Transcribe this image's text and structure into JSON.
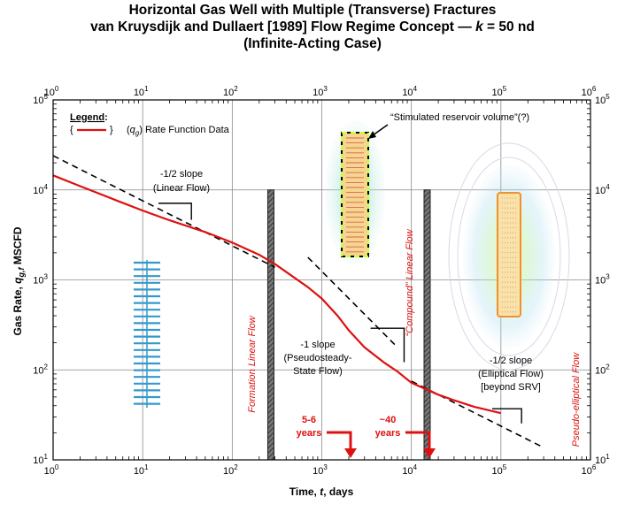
{
  "titles": {
    "line1": "Horizontal Gas Well with Multiple (Transverse) Fractures",
    "line2_prefix": "van Kruysdijk and Dullaert [1989] Flow Regime Concept — ",
    "line2_k": "k",
    "line2_suffix": " = 50 nd",
    "line3": "(Infinite-Acting Case)"
  },
  "chart_data": {
    "type": "line",
    "x_scale": "log",
    "y_scale": "log",
    "xlim": [
      1,
      1000000
    ],
    "ylim": [
      10,
      100000
    ],
    "grid": true,
    "xlabel": {
      "pre": "Time, ",
      "var": "t",
      "post": ", days"
    },
    "ylabel": {
      "pre": "Gas Rate, ",
      "var": "q",
      "sub": "g,f",
      "post": "  MSCFD"
    },
    "x_ticks": [
      {
        "base": "10",
        "exp": "0"
      },
      {
        "base": "10",
        "exp": "1"
      },
      {
        "base": "10",
        "exp": "2"
      },
      {
        "base": "10",
        "exp": "3"
      },
      {
        "base": "10",
        "exp": "4"
      },
      {
        "base": "10",
        "exp": "5"
      },
      {
        "base": "10",
        "exp": "6"
      }
    ],
    "y_ticks": [
      {
        "base": "10",
        "exp": "1"
      },
      {
        "base": "10",
        "exp": "2"
      },
      {
        "base": "10",
        "exp": "3"
      },
      {
        "base": "10",
        "exp": "4"
      },
      {
        "base": "10",
        "exp": "5"
      }
    ],
    "legend": {
      "title": "Legend",
      "entry_open": "{",
      "entry_close": "}",
      "var": "q",
      "sub": "g",
      "label": "Rate Function Data"
    },
    "series": [
      {
        "name": "Rate Function Data",
        "color": "#dd1111",
        "x": [
          1,
          2,
          5,
          10,
          20,
          50,
          100,
          200,
          300,
          500,
          700,
          1000,
          1500,
          2000,
          3000,
          5000,
          7000,
          10000,
          15000,
          20000,
          30000,
          50000,
          70000,
          100000
        ],
        "y": [
          14500,
          11000,
          7700,
          5900,
          4600,
          3400,
          2600,
          1900,
          1500,
          1050,
          830,
          620,
          400,
          275,
          178,
          120,
          96,
          72,
          60,
          53,
          46,
          39,
          36,
          33
        ]
      }
    ],
    "model_lines": [
      {
        "name": "-1/2 slope",
        "style": "dashed",
        "x": [
          1,
          300
        ],
        "y": [
          24000,
          1380
        ]
      },
      {
        "name": "-1 slope",
        "style": "dashed",
        "x": [
          700,
          7000
        ],
        "y": [
          1780,
          178
        ]
      },
      {
        "name": "-1/2 slope",
        "style": "dashed",
        "x": [
          10000,
          300000
        ],
        "y": [
          75,
          13.7
        ]
      }
    ],
    "slope_triangles": [
      {
        "x": [
          15,
          35
        ],
        "y": [
          7100,
          4650
        ]
      },
      {
        "x": [
          3500,
          8300
        ],
        "y": [
          290,
          122
        ]
      },
      {
        "x": [
          80000,
          170000
        ],
        "y": [
          37,
          25.4
        ]
      }
    ],
    "vertical_bars": [
      {
        "x": 270,
        "ytop": 10000
      },
      {
        "x": 15000,
        "ytop": 10000
      }
    ],
    "annotations": {
      "slope1": [
        "-1/2 slope",
        "(Linear Flow)"
      ],
      "slope2": [
        "-1 slope",
        "(Pseudosteady-",
        "State Flow)"
      ],
      "slope3": [
        "-1/2 slope",
        "(Elliptical Flow)",
        "[beyond  SRV]"
      ],
      "srv": "“Stimulated reservoir volume”(?)",
      "formation_flow": "Formation Linear Flow",
      "compound_flow": "“Compound” Linear Flow",
      "pseudo_elliptical": "Pseudo-elliptical Flow",
      "arrow1": [
        "5-6",
        "years"
      ],
      "arrow2": [
        "~40",
        "years"
      ]
    },
    "colors": {
      "data": "#dd1111",
      "annotation_red": "#dd1111",
      "fracture_blue": "#3399cc",
      "srv_outline": "#000000",
      "srv_highlight": "#ccff33"
    }
  }
}
